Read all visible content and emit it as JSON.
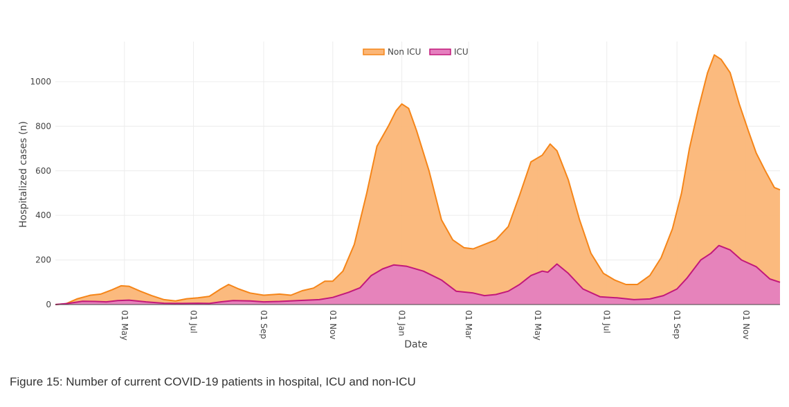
{
  "caption": "Figure 15: Number of current COVID-19 patients in hospital, ICU and non-ICU",
  "chart_data": {
    "type": "area",
    "xlabel": "Date",
    "ylabel": "Hospitalized cases (n)",
    "grid": true,
    "legend_position": "top-center",
    "x_start": "2020-03-01",
    "x_end": "2021-12-01",
    "ylim": [
      0,
      1180
    ],
    "yticks": [
      0,
      200,
      400,
      600,
      800,
      1000
    ],
    "xticks": [
      {
        "date": "2020-05-01",
        "label": "01 May"
      },
      {
        "date": "2020-07-01",
        "label": "01 Jul"
      },
      {
        "date": "2020-09-01",
        "label": "01 Sep"
      },
      {
        "date": "2020-11-01",
        "label": "01 Nov"
      },
      {
        "date": "2021-01-01",
        "label": "01 Jan"
      },
      {
        "date": "2021-03-01",
        "label": "01 Mar"
      },
      {
        "date": "2021-05-01",
        "label": "01 May"
      },
      {
        "date": "2021-07-01",
        "label": "01 Jul"
      },
      {
        "date": "2021-09-01",
        "label": "01 Sep"
      },
      {
        "date": "2021-11-01",
        "label": "01 Nov"
      }
    ],
    "series": [
      {
        "name": "Non ICU",
        "color": "#f58518",
        "fill": "#fbb677",
        "points": [
          [
            "2020-03-01",
            0
          ],
          [
            "2020-03-10",
            3
          ],
          [
            "2020-03-20",
            25
          ],
          [
            "2020-04-01",
            42
          ],
          [
            "2020-04-10",
            47
          ],
          [
            "2020-04-20",
            66
          ],
          [
            "2020-04-28",
            84
          ],
          [
            "2020-05-05",
            82
          ],
          [
            "2020-05-15",
            60
          ],
          [
            "2020-05-25",
            40
          ],
          [
            "2020-06-05",
            22
          ],
          [
            "2020-06-15",
            16
          ],
          [
            "2020-06-25",
            26
          ],
          [
            "2020-07-05",
            30
          ],
          [
            "2020-07-15",
            37
          ],
          [
            "2020-07-25",
            70
          ],
          [
            "2020-08-01",
            90
          ],
          [
            "2020-08-10",
            70
          ],
          [
            "2020-08-20",
            52
          ],
          [
            "2020-09-01",
            42
          ],
          [
            "2020-09-15",
            47
          ],
          [
            "2020-09-25",
            42
          ],
          [
            "2020-10-05",
            62
          ],
          [
            "2020-10-15",
            74
          ],
          [
            "2020-10-25",
            105
          ],
          [
            "2020-11-01",
            105
          ],
          [
            "2020-11-10",
            150
          ],
          [
            "2020-11-20",
            270
          ],
          [
            "2020-12-01",
            500
          ],
          [
            "2020-12-10",
            710
          ],
          [
            "2020-12-20",
            800
          ],
          [
            "2020-12-27",
            870
          ],
          [
            "2021-01-01",
            900
          ],
          [
            "2021-01-07",
            880
          ],
          [
            "2021-01-14",
            780
          ],
          [
            "2021-01-25",
            600
          ],
          [
            "2021-02-05",
            380
          ],
          [
            "2021-02-15",
            290
          ],
          [
            "2021-02-25",
            255
          ],
          [
            "2021-03-05",
            250
          ],
          [
            "2021-03-15",
            270
          ],
          [
            "2021-03-25",
            290
          ],
          [
            "2021-04-05",
            350
          ],
          [
            "2021-04-15",
            490
          ],
          [
            "2021-04-25",
            640
          ],
          [
            "2021-05-05",
            670
          ],
          [
            "2021-05-12",
            720
          ],
          [
            "2021-05-18",
            690
          ],
          [
            "2021-05-28",
            560
          ],
          [
            "2021-06-07",
            380
          ],
          [
            "2021-06-17",
            230
          ],
          [
            "2021-06-28",
            140
          ],
          [
            "2021-07-08",
            110
          ],
          [
            "2021-07-18",
            90
          ],
          [
            "2021-07-28",
            90
          ],
          [
            "2021-08-08",
            130
          ],
          [
            "2021-08-18",
            210
          ],
          [
            "2021-08-28",
            340
          ],
          [
            "2021-09-05",
            500
          ],
          [
            "2021-09-12",
            700
          ],
          [
            "2021-09-20",
            880
          ],
          [
            "2021-09-28",
            1040
          ],
          [
            "2021-10-04",
            1120
          ],
          [
            "2021-10-10",
            1100
          ],
          [
            "2021-10-18",
            1040
          ],
          [
            "2021-10-26",
            900
          ],
          [
            "2021-11-03",
            780
          ],
          [
            "2021-11-10",
            680
          ],
          [
            "2021-11-18",
            600
          ],
          [
            "2021-11-26",
            525
          ],
          [
            "2021-12-01",
            515
          ]
        ]
      },
      {
        "name": "ICU",
        "color": "#c2187a",
        "fill": "#e57fbf",
        "points": [
          [
            "2020-03-01",
            0
          ],
          [
            "2020-03-12",
            5
          ],
          [
            "2020-03-25",
            15
          ],
          [
            "2020-04-05",
            14
          ],
          [
            "2020-04-15",
            12
          ],
          [
            "2020-04-25",
            18
          ],
          [
            "2020-05-05",
            20
          ],
          [
            "2020-05-20",
            12
          ],
          [
            "2020-06-05",
            6
          ],
          [
            "2020-06-20",
            5
          ],
          [
            "2020-07-05",
            6
          ],
          [
            "2020-07-15",
            5
          ],
          [
            "2020-07-25",
            12
          ],
          [
            "2020-08-05",
            18
          ],
          [
            "2020-08-20",
            16
          ],
          [
            "2020-09-01",
            12
          ],
          [
            "2020-09-15",
            14
          ],
          [
            "2020-10-01",
            18
          ],
          [
            "2020-10-20",
            22
          ],
          [
            "2020-11-01",
            32
          ],
          [
            "2020-11-15",
            55
          ],
          [
            "2020-11-25",
            75
          ],
          [
            "2020-12-05",
            130
          ],
          [
            "2020-12-15",
            160
          ],
          [
            "2020-12-25",
            178
          ],
          [
            "2021-01-05",
            172
          ],
          [
            "2021-01-20",
            150
          ],
          [
            "2021-02-05",
            110
          ],
          [
            "2021-02-18",
            60
          ],
          [
            "2021-03-05",
            52
          ],
          [
            "2021-03-15",
            40
          ],
          [
            "2021-03-25",
            45
          ],
          [
            "2021-04-05",
            60
          ],
          [
            "2021-04-15",
            90
          ],
          [
            "2021-04-25",
            130
          ],
          [
            "2021-05-05",
            150
          ],
          [
            "2021-05-10",
            145
          ],
          [
            "2021-05-18",
            182
          ],
          [
            "2021-05-28",
            140
          ],
          [
            "2021-06-10",
            70
          ],
          [
            "2021-06-25",
            35
          ],
          [
            "2021-07-10",
            30
          ],
          [
            "2021-07-25",
            22
          ],
          [
            "2021-08-08",
            25
          ],
          [
            "2021-08-20",
            40
          ],
          [
            "2021-09-01",
            70
          ],
          [
            "2021-09-10",
            120
          ],
          [
            "2021-09-22",
            200
          ],
          [
            "2021-10-01",
            230
          ],
          [
            "2021-10-08",
            265
          ],
          [
            "2021-10-18",
            245
          ],
          [
            "2021-10-28",
            200
          ],
          [
            "2021-11-10",
            170
          ],
          [
            "2021-11-22",
            115
          ],
          [
            "2021-12-01",
            100
          ]
        ]
      }
    ]
  }
}
